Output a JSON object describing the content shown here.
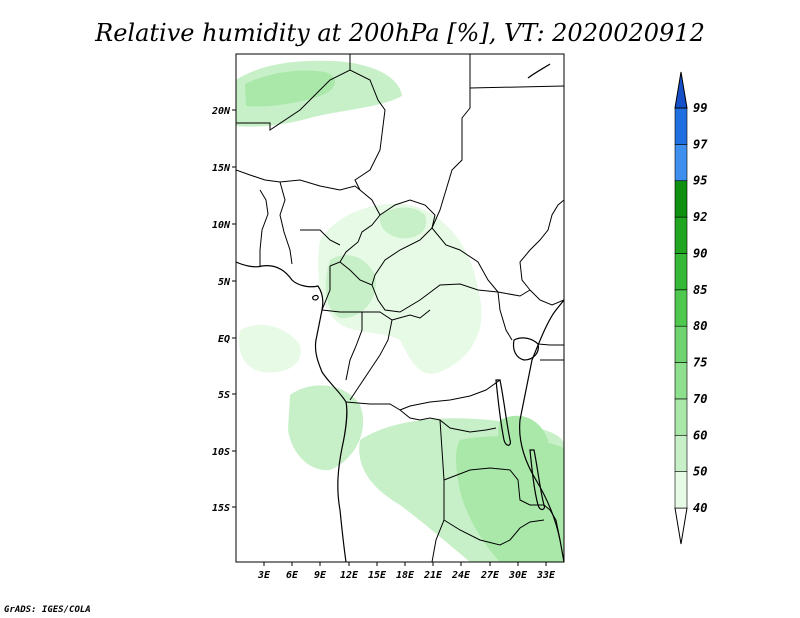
{
  "title": "Relative humidity at 200hPa [%], VT: 2020020912",
  "credit": "GrADS: IGES/COLA",
  "y_ticks": [
    "20N",
    "15N",
    "10N",
    "5N",
    "EQ",
    "5S",
    "10S",
    "15S"
  ],
  "x_ticks": [
    "3E",
    "6E",
    "9E",
    "12E",
    "15E",
    "18E",
    "21E",
    "24E",
    "27E",
    "30E",
    "33E"
  ],
  "colorbar": {
    "labels": [
      "40",
      "50",
      "60",
      "70",
      "75",
      "80",
      "85",
      "90",
      "92",
      "95",
      "97",
      "99"
    ],
    "colors": [
      "#ffffff",
      "#e6fae6",
      "#c8f0c8",
      "#aae8aa",
      "#8edf8e",
      "#6fd46f",
      "#4fc84f",
      "#35b835",
      "#20a520",
      "#0f900f",
      "#3f90ee",
      "#1f6fe0",
      "#1550c8"
    ]
  },
  "map": {
    "land_fill": "#ffffff",
    "ocean_fill": "#ffffff",
    "humidity_colors": [
      "#e6fae6",
      "#c8f0c8",
      "#aae8aa"
    ]
  }
}
